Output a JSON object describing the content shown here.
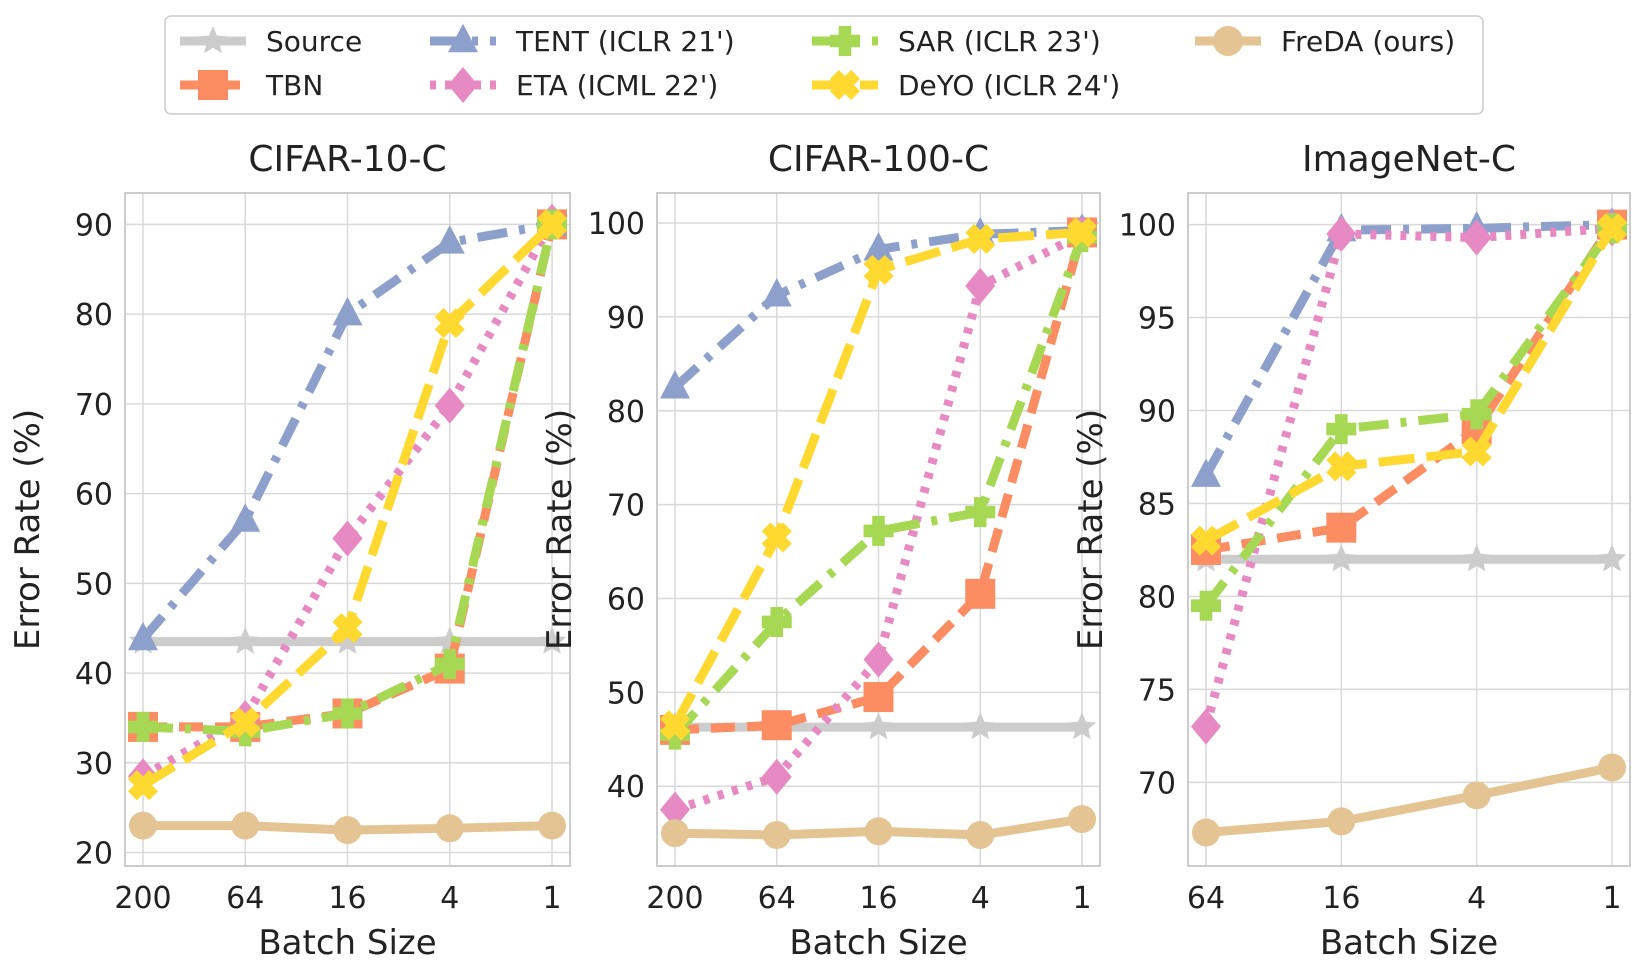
{
  "legend": {
    "items": [
      {
        "key": "source",
        "label": "Source"
      },
      {
        "key": "tbn",
        "label": "TBN"
      },
      {
        "key": "tent",
        "label": "TENT (ICLR 21')"
      },
      {
        "key": "eta",
        "label": "ETA (ICML 22')"
      },
      {
        "key": "sar",
        "label": "SAR (ICLR 23')"
      },
      {
        "key": "deyo",
        "label": "DeYO (ICLR 24')"
      },
      {
        "key": "freda",
        "label": "FreDA (ours)"
      }
    ]
  },
  "styles": {
    "source": {
      "color": "#cccccc",
      "marker": "star",
      "dash": "solid"
    },
    "tbn": {
      "color": "#fc8d62",
      "marker": "square",
      "dash": "dashed"
    },
    "tent": {
      "color": "#8da0cb",
      "marker": "triangle",
      "dash": "dashdot"
    },
    "eta": {
      "color": "#e78ac3",
      "marker": "diamond",
      "dash": "dotted"
    },
    "sar": {
      "color": "#a6d854",
      "marker": "plus",
      "dash": "dashdot"
    },
    "deyo": {
      "color": "#ffd92f",
      "marker": "x",
      "dash": "longdash"
    },
    "freda": {
      "color": "#e5c494",
      "marker": "circle",
      "dash": "solid"
    }
  },
  "chart_data": [
    {
      "type": "line",
      "title": "CIFAR-10-C",
      "xlabel": "Batch Size",
      "ylabel": "Error Rate (%)",
      "categories": [
        "200",
        "64",
        "16",
        "4",
        "1"
      ],
      "ylim": [
        18.5,
        93.5
      ],
      "yticks": [
        20,
        30,
        40,
        50,
        60,
        70,
        80,
        90
      ],
      "grid": true,
      "series": [
        {
          "key": "source",
          "name": "Source",
          "values": [
            43.5,
            43.5,
            43.5,
            43.5,
            43.5
          ]
        },
        {
          "key": "tbn",
          "name": "TBN",
          "values": [
            34,
            34,
            35.5,
            40.5,
            90
          ]
        },
        {
          "key": "tent",
          "name": "TENT (ICLR 21')",
          "values": [
            43.8,
            57,
            80,
            88,
            90
          ]
        },
        {
          "key": "eta",
          "name": "ETA (ICML 22')",
          "values": [
            28.5,
            35,
            55,
            69.8,
            90.3
          ]
        },
        {
          "key": "sar",
          "name": "SAR (ICLR 23')",
          "values": [
            34,
            33.5,
            35.5,
            41,
            90
          ]
        },
        {
          "key": "deyo",
          "name": "DeYO (ICLR 24')",
          "values": [
            27.5,
            34.5,
            45,
            79,
            90
          ]
        },
        {
          "key": "freda",
          "name": "FreDA (ours)",
          "values": [
            23,
            23,
            22.5,
            22.7,
            23
          ]
        }
      ]
    },
    {
      "type": "line",
      "title": "CIFAR-100-C",
      "xlabel": "Batch Size",
      "ylabel": "Error Rate (%)",
      "categories": [
        "200",
        "64",
        "16",
        "4",
        "1"
      ],
      "ylim": [
        31.5,
        103.2
      ],
      "yticks": [
        40,
        50,
        60,
        70,
        80,
        90,
        100
      ],
      "grid": true,
      "series": [
        {
          "key": "source",
          "name": "Source",
          "values": [
            46.3,
            46.3,
            46.3,
            46.3,
            46.3
          ]
        },
        {
          "key": "tbn",
          "name": "TBN",
          "values": [
            46,
            46.5,
            49.5,
            60.5,
            99
          ]
        },
        {
          "key": "tent",
          "name": "TENT (ICLR 21')",
          "values": [
            82.5,
            92.3,
            97.2,
            98.8,
            99.2
          ]
        },
        {
          "key": "eta",
          "name": "ETA (ICML 22')",
          "values": [
            37.5,
            41,
            53.5,
            93.3,
            98.8
          ]
        },
        {
          "key": "sar",
          "name": "SAR (ICLR 23')",
          "values": [
            45.5,
            57.5,
            67.2,
            69.2,
            98.5
          ]
        },
        {
          "key": "deyo",
          "name": "DeYO (ICLR 24')",
          "values": [
            46.5,
            66.5,
            95,
            98.3,
            99
          ]
        },
        {
          "key": "freda",
          "name": "FreDA (ours)",
          "values": [
            35,
            34.8,
            35.2,
            34.8,
            36.5
          ]
        }
      ]
    },
    {
      "type": "line",
      "title": "ImageNet-C",
      "xlabel": "Batch Size",
      "ylabel": "Error Rate (%)",
      "categories": [
        "64",
        "16",
        "4",
        "1"
      ],
      "ylim": [
        65.5,
        101.7
      ],
      "yticks": [
        70,
        75,
        80,
        85,
        90,
        95,
        100
      ],
      "grid": true,
      "series": [
        {
          "key": "source",
          "name": "Source",
          "values": [
            82,
            82,
            82,
            82
          ]
        },
        {
          "key": "tbn",
          "name": "TBN",
          "values": [
            82.5,
            83.7,
            89,
            100
          ]
        },
        {
          "key": "tent",
          "name": "TENT (ICLR 21')",
          "values": [
            86.5,
            99.7,
            99.8,
            100
          ]
        },
        {
          "key": "eta",
          "name": "ETA (ICML 22')",
          "values": [
            73,
            99.5,
            99.3,
            99.8
          ]
        },
        {
          "key": "sar",
          "name": "SAR (ICLR 23')",
          "values": [
            79.5,
            89,
            89.8,
            99.8
          ]
        },
        {
          "key": "deyo",
          "name": "DeYO (ICLR 24')",
          "values": [
            83,
            87,
            87.8,
            99.8
          ]
        },
        {
          "key": "freda",
          "name": "FreDA (ours)",
          "values": [
            67.3,
            67.9,
            69.3,
            70.8
          ]
        }
      ]
    }
  ]
}
